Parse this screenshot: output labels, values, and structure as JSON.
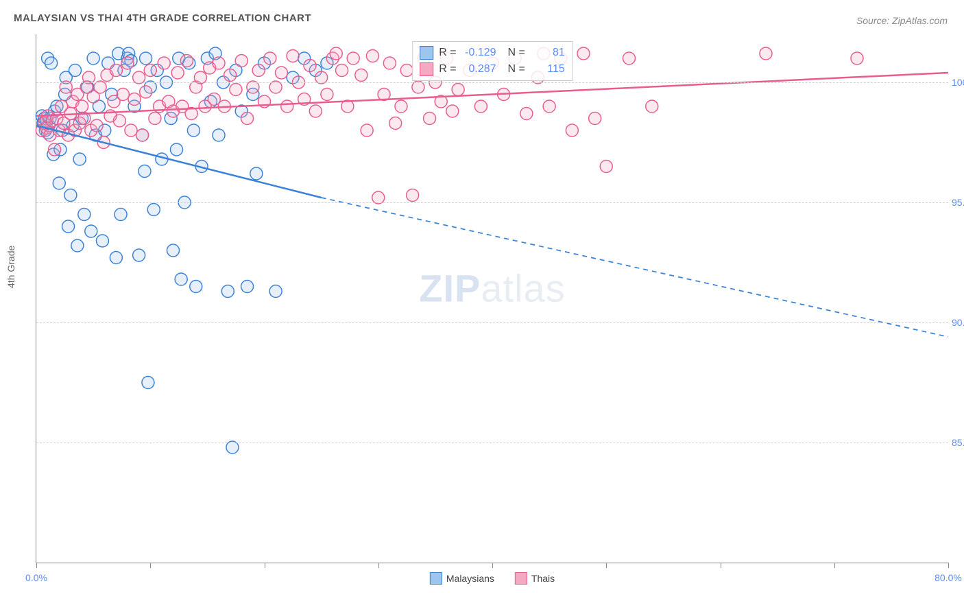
{
  "title": "MALAYSIAN VS THAI 4TH GRADE CORRELATION CHART",
  "source": "Source: ZipAtlas.com",
  "yaxis_label": "4th Grade",
  "watermark_strong": "ZIP",
  "watermark_light": "atlas",
  "chart": {
    "type": "scatter-with-regression",
    "xlim": [
      0,
      80
    ],
    "ylim": [
      80,
      102
    ],
    "xticks": [
      0,
      10,
      20,
      30,
      40,
      50,
      60,
      70,
      80
    ],
    "xtick_labels": {
      "0": "0.0%",
      "80": "80.0%"
    },
    "yticks": [
      85,
      90,
      95,
      100
    ],
    "ytick_labels": {
      "85": "85.0%",
      "90": "90.0%",
      "95": "95.0%",
      "100": "100.0%"
    },
    "grid_color": "#d0d0d0",
    "background_color": "#ffffff",
    "marker_radius": 9,
    "marker_stroke_width": 1.5,
    "marker_fill_opacity": 0.25,
    "regression_line_width": 2.5,
    "series": [
      {
        "name": "Malaysians",
        "color_stroke": "#3b82d6",
        "color_fill": "#9ec5ed",
        "R": "-0.129",
        "N": "81",
        "regression": {
          "x1": 0,
          "y1": 98.2,
          "x2_solid": 25,
          "y2_solid": 95.2,
          "x2": 80,
          "y2": 89.4
        },
        "points": [
          [
            0.5,
            98.6
          ],
          [
            0.6,
            98.3
          ],
          [
            0.7,
            98.5
          ],
          [
            0.8,
            98.0
          ],
          [
            0.9,
            98.4
          ],
          [
            1.0,
            97.9
          ],
          [
            1.1,
            98.2
          ],
          [
            1.2,
            98.5
          ],
          [
            1.0,
            101.0
          ],
          [
            1.3,
            100.8
          ],
          [
            1.5,
            97.0
          ],
          [
            1.6,
            98.8
          ],
          [
            1.8,
            99.0
          ],
          [
            2.0,
            95.8
          ],
          [
            2.1,
            97.2
          ],
          [
            2.3,
            98.0
          ],
          [
            2.5,
            99.5
          ],
          [
            2.6,
            100.2
          ],
          [
            2.8,
            94.0
          ],
          [
            3.0,
            95.3
          ],
          [
            3.2,
            98.2
          ],
          [
            3.4,
            100.5
          ],
          [
            3.6,
            93.2
          ],
          [
            3.8,
            96.8
          ],
          [
            4.0,
            98.5
          ],
          [
            4.2,
            94.5
          ],
          [
            4.5,
            99.8
          ],
          [
            4.8,
            93.8
          ],
          [
            5.0,
            101.0
          ],
          [
            5.2,
            97.8
          ],
          [
            5.5,
            99.0
          ],
          [
            5.8,
            93.4
          ],
          [
            6.0,
            98.0
          ],
          [
            6.3,
            100.8
          ],
          [
            6.6,
            99.5
          ],
          [
            7.0,
            92.7
          ],
          [
            7.2,
            101.2
          ],
          [
            7.4,
            94.5
          ],
          [
            7.7,
            100.5
          ],
          [
            8.0,
            101.0
          ],
          [
            8.1,
            101.2
          ],
          [
            8.3,
            100.9
          ],
          [
            8.6,
            99.0
          ],
          [
            9.0,
            92.8
          ],
          [
            9.3,
            97.8
          ],
          [
            9.5,
            96.3
          ],
          [
            9.6,
            101.0
          ],
          [
            9.8,
            87.5
          ],
          [
            10.0,
            99.8
          ],
          [
            10.3,
            94.7
          ],
          [
            10.6,
            100.5
          ],
          [
            11.0,
            96.8
          ],
          [
            11.4,
            100.0
          ],
          [
            11.8,
            98.5
          ],
          [
            12.0,
            93.0
          ],
          [
            12.3,
            97.2
          ],
          [
            12.5,
            101.0
          ],
          [
            12.7,
            91.8
          ],
          [
            13.0,
            95.0
          ],
          [
            13.4,
            100.8
          ],
          [
            13.8,
            98.0
          ],
          [
            14.0,
            91.5
          ],
          [
            14.5,
            96.5
          ],
          [
            15.0,
            101.0
          ],
          [
            15.3,
            99.2
          ],
          [
            15.7,
            101.2
          ],
          [
            16.0,
            97.8
          ],
          [
            16.4,
            100.0
          ],
          [
            16.8,
            91.3
          ],
          [
            17.2,
            84.8
          ],
          [
            17.5,
            100.5
          ],
          [
            18.0,
            98.8
          ],
          [
            18.5,
            91.5
          ],
          [
            19.0,
            99.5
          ],
          [
            19.3,
            96.2
          ],
          [
            20.0,
            100.8
          ],
          [
            21.0,
            91.3
          ],
          [
            22.5,
            100.2
          ],
          [
            23.5,
            101.0
          ],
          [
            24.5,
            100.5
          ],
          [
            25.5,
            100.8
          ]
        ]
      },
      {
        "name": "Thais",
        "color_stroke": "#e85d8e",
        "color_fill": "#f4a8c2",
        "R": "0.287",
        "N": "115",
        "regression": {
          "x1": 0,
          "y1": 98.6,
          "x2_solid": 80,
          "y2_solid": 100.4,
          "x2": 80,
          "y2": 100.4
        },
        "points": [
          [
            0.5,
            98.0
          ],
          [
            0.7,
            98.3
          ],
          [
            0.9,
            98.1
          ],
          [
            1.0,
            98.6
          ],
          [
            1.2,
            97.8
          ],
          [
            1.4,
            98.4
          ],
          [
            1.6,
            97.2
          ],
          [
            1.8,
            98.5
          ],
          [
            2.0,
            98.0
          ],
          [
            2.2,
            99.0
          ],
          [
            2.4,
            98.3
          ],
          [
            2.6,
            99.8
          ],
          [
            2.8,
            97.8
          ],
          [
            3.0,
            98.7
          ],
          [
            3.2,
            99.2
          ],
          [
            3.4,
            98.0
          ],
          [
            3.6,
            99.5
          ],
          [
            3.8,
            98.3
          ],
          [
            4.0,
            99.0
          ],
          [
            4.2,
            98.5
          ],
          [
            4.4,
            99.8
          ],
          [
            4.6,
            100.2
          ],
          [
            4.8,
            98.0
          ],
          [
            5.0,
            99.4
          ],
          [
            5.3,
            98.2
          ],
          [
            5.6,
            99.8
          ],
          [
            5.9,
            97.5
          ],
          [
            6.2,
            100.3
          ],
          [
            6.5,
            98.6
          ],
          [
            6.8,
            99.2
          ],
          [
            7.0,
            100.5
          ],
          [
            7.3,
            98.4
          ],
          [
            7.6,
            99.5
          ],
          [
            8.0,
            100.8
          ],
          [
            8.3,
            98.0
          ],
          [
            8.6,
            99.3
          ],
          [
            9.0,
            100.2
          ],
          [
            9.3,
            97.8
          ],
          [
            9.6,
            99.6
          ],
          [
            10.0,
            100.5
          ],
          [
            10.4,
            98.5
          ],
          [
            10.8,
            99.0
          ],
          [
            11.2,
            100.8
          ],
          [
            11.6,
            99.2
          ],
          [
            12.0,
            98.8
          ],
          [
            12.4,
            100.4
          ],
          [
            12.8,
            99.0
          ],
          [
            13.2,
            100.9
          ],
          [
            13.6,
            98.7
          ],
          [
            14.0,
            99.8
          ],
          [
            14.4,
            100.2
          ],
          [
            14.8,
            99.0
          ],
          [
            15.2,
            100.6
          ],
          [
            15.6,
            99.3
          ],
          [
            16.0,
            100.8
          ],
          [
            16.5,
            99.0
          ],
          [
            17.0,
            100.3
          ],
          [
            17.5,
            99.7
          ],
          [
            18.0,
            100.9
          ],
          [
            18.5,
            98.5
          ],
          [
            19.0,
            99.8
          ],
          [
            19.5,
            100.5
          ],
          [
            20.0,
            99.2
          ],
          [
            20.5,
            101.0
          ],
          [
            21.0,
            99.8
          ],
          [
            21.5,
            100.4
          ],
          [
            22.0,
            99.0
          ],
          [
            22.5,
            101.1
          ],
          [
            23.0,
            100.0
          ],
          [
            23.5,
            99.3
          ],
          [
            24.0,
            100.7
          ],
          [
            24.5,
            98.8
          ],
          [
            25.0,
            100.2
          ],
          [
            25.5,
            99.5
          ],
          [
            26.0,
            101.0
          ],
          [
            26.3,
            101.2
          ],
          [
            26.8,
            100.5
          ],
          [
            27.3,
            99.0
          ],
          [
            27.8,
            101.0
          ],
          [
            28.5,
            100.3
          ],
          [
            29.0,
            98.0
          ],
          [
            29.5,
            101.1
          ],
          [
            30.0,
            95.2
          ],
          [
            30.5,
            99.5
          ],
          [
            31.0,
            100.8
          ],
          [
            31.5,
            98.3
          ],
          [
            32.0,
            99.0
          ],
          [
            32.5,
            100.5
          ],
          [
            33.0,
            95.3
          ],
          [
            33.5,
            99.8
          ],
          [
            34.0,
            101.0
          ],
          [
            34.5,
            98.5
          ],
          [
            35.0,
            100.0
          ],
          [
            35.5,
            99.2
          ],
          [
            36.0,
            101.0
          ],
          [
            36.5,
            98.8
          ],
          [
            37.0,
            99.7
          ],
          [
            38.0,
            100.5
          ],
          [
            39.0,
            99.0
          ],
          [
            40.0,
            100.8
          ],
          [
            41.0,
            99.5
          ],
          [
            42.0,
            101.0
          ],
          [
            43.0,
            98.7
          ],
          [
            44.0,
            100.2
          ],
          [
            44.5,
            101.2
          ],
          [
            45.0,
            99.0
          ],
          [
            46.0,
            101.0
          ],
          [
            47.0,
            98.0
          ],
          [
            48.0,
            101.2
          ],
          [
            49.0,
            98.5
          ],
          [
            50.0,
            96.5
          ],
          [
            52.0,
            101.0
          ],
          [
            54.0,
            99.0
          ],
          [
            64.0,
            101.2
          ],
          [
            72.0,
            101.0
          ]
        ]
      }
    ]
  },
  "legend": {
    "series1_label": "Malaysians",
    "series2_label": "Thais"
  }
}
